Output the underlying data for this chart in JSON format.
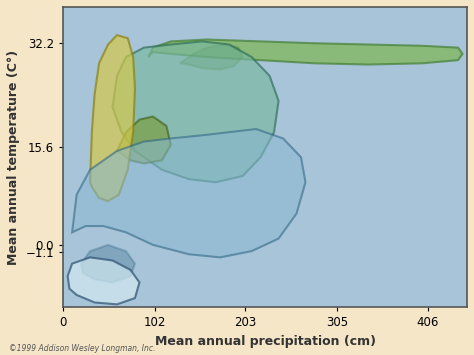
{
  "background_color": "#f5e6c8",
  "plot_bg_color": "#a8c4d8",
  "xlabel": "Mean annual precipitation (cm)",
  "ylabel": "Mean annual temperature (C°)",
  "xticks": [
    0,
    102,
    203,
    305,
    406
  ],
  "yticks": [
    -1.1,
    0,
    15.6,
    32.2
  ],
  "xlim": [
    0,
    450
  ],
  "ylim": [
    -10,
    38
  ],
  "copyright": "©1999 Addison Wesley Longman, Inc.",
  "biomes": {
    "tropical_forest": {
      "color": "#7ab648",
      "edge_color": "#3d7a2a",
      "alpha": 0.65
    },
    "temperate_forest": {
      "color": "#78b8a0",
      "edge_color": "#2a6b55",
      "alpha": 0.65
    },
    "grassland_savanna": {
      "color": "#d4c84a",
      "edge_color": "#8a8010",
      "alpha": 0.7
    },
    "woodland_shrubland": {
      "color": "#7a9a30",
      "edge_color": "#3a5a10",
      "alpha": 0.7
    },
    "temperate_deciduous": {
      "color": "#88b8d0",
      "edge_color": "#2a6080",
      "alpha": 0.55
    },
    "tundra_ice": {
      "color": "#d0e8f0",
      "edge_color": "#2a5070",
      "alpha": 0.7
    }
  }
}
